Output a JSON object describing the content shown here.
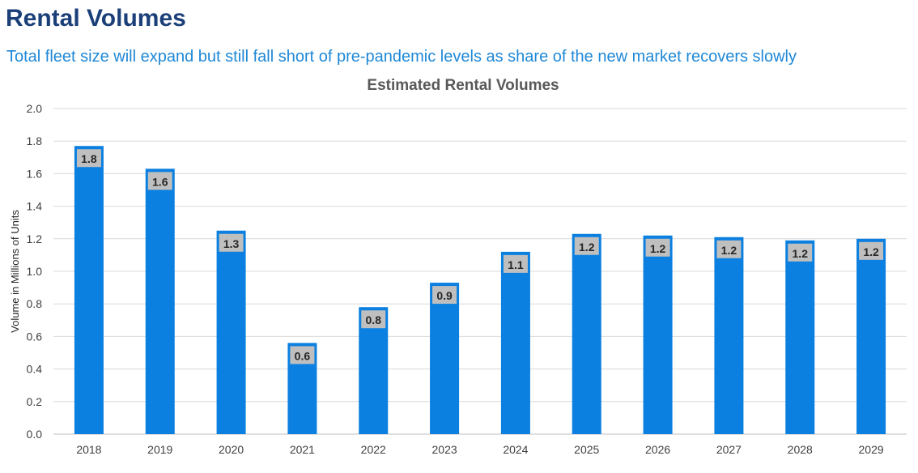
{
  "header": {
    "title": "Rental Volumes",
    "subtitle": "Total fleet size will expand but still fall short of pre-pandemic levels as share of the new market recovers slowly"
  },
  "colors": {
    "title": "#1b3f78",
    "subtitle": "#1f88d6",
    "bar": "#0b80e0",
    "data_label_bg": "#bfbfbf",
    "gridline": "#d9d9d9"
  },
  "chart_data": {
    "type": "bar",
    "title": "Estimated Rental Volumes",
    "xlabel": "",
    "ylabel": "Volume in Millions of Units",
    "categories": [
      "2018",
      "2019",
      "2020",
      "2021",
      "2022",
      "2023",
      "2024",
      "2025",
      "2026",
      "2027",
      "2028",
      "2029"
    ],
    "values": [
      1.77,
      1.63,
      1.25,
      0.56,
      0.78,
      0.93,
      1.12,
      1.23,
      1.22,
      1.21,
      1.19,
      1.2
    ],
    "data_labels": [
      "1.8",
      "1.6",
      "1.3",
      "0.6",
      "0.8",
      "0.9",
      "1.1",
      "1.2",
      "1.2",
      "1.2",
      "1.2",
      "1.2"
    ],
    "ylim": [
      0,
      2.0
    ],
    "yticks": [
      "0.0",
      "0.2",
      "0.4",
      "0.6",
      "0.8",
      "1.0",
      "1.2",
      "1.4",
      "1.6",
      "1.8",
      "2.0"
    ],
    "grid": true,
    "legend": "none"
  }
}
